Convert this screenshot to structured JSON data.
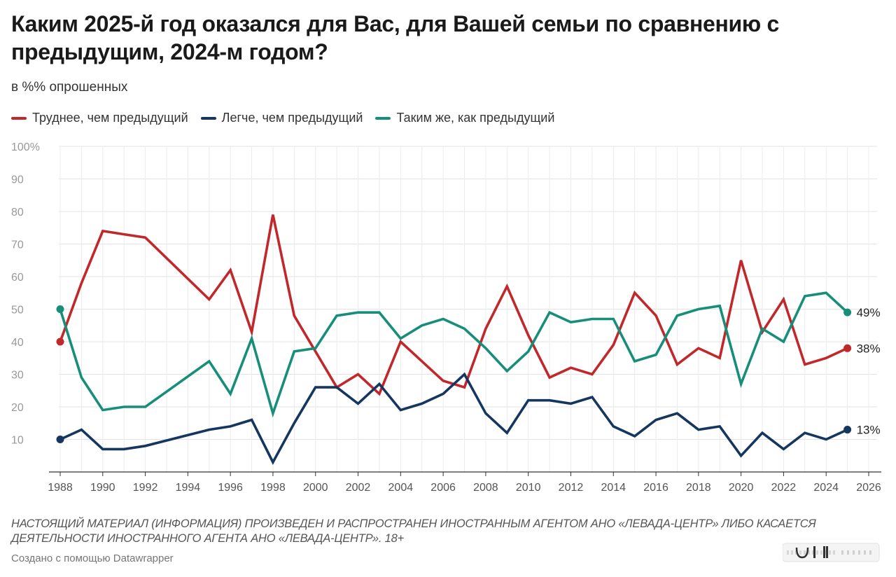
{
  "title": "Каким 2025-й год оказался для Вас, для Вашей семьи по сравнению с предыдущим, 2024-м годом?",
  "subtitle": "в %% опрошенных",
  "notice": "НАСТОЯЩИЙ МАТЕРИАЛ (ИНФОРМАЦИЯ) ПРОИЗВЕДЕН И РАСПРОСТРАНЕН ИНОСТРАННЫМ АГЕНТОМ АНО «ЛЕВАДА-ЦЕНТР» ЛИБО КАСАЕТСЯ ДЕЯТЕЛЬНОСТИ ИНОСТРАННОГО АГЕНТА АНО «ЛЕВАДА-ЦЕНТР». 18+",
  "credit": "Создано с помощью Datawrapper",
  "chart_data": {
    "type": "line",
    "title": "Каким 2025-й год оказался для Вас, для Вашей семьи по сравнению с предыдущим, 2024-м годом?",
    "xlabel": "",
    "ylabel": "в %% опрошенных",
    "xlim": [
      1988,
      2026
    ],
    "ylim": [
      0,
      100
    ],
    "grid": true,
    "legend_position": "top",
    "x_ticks": [
      "1988",
      "1990",
      "1992",
      "1994",
      "1996",
      "1998",
      "2000",
      "2002",
      "2004",
      "2006",
      "2008",
      "2010",
      "2012",
      "2014",
      "2016",
      "2018",
      "2020",
      "2022",
      "2024",
      "2026"
    ],
    "y_ticks": [
      "100%",
      "90",
      "80",
      "70",
      "60",
      "50",
      "40",
      "30",
      "20",
      "10"
    ],
    "series": [
      {
        "name": "Труднее, чем предыдущий",
        "color": "#c0282b",
        "end_label": "38%",
        "points": [
          [
            1988,
            40
          ],
          [
            1989,
            58
          ],
          [
            1990,
            74
          ],
          [
            1991,
            73
          ],
          [
            1992,
            72
          ],
          [
            1995,
            53
          ],
          [
            1996,
            62
          ],
          [
            1997,
            43
          ],
          [
            1998,
            79
          ],
          [
            1999,
            48
          ],
          [
            2000,
            37
          ],
          [
            2001,
            26
          ],
          [
            2002,
            30
          ],
          [
            2003,
            24
          ],
          [
            2004,
            40
          ],
          [
            2005,
            34
          ],
          [
            2006,
            28
          ],
          [
            2007,
            26
          ],
          [
            2008,
            44
          ],
          [
            2009,
            57
          ],
          [
            2010,
            42
          ],
          [
            2011,
            29
          ],
          [
            2012,
            32
          ],
          [
            2013,
            30
          ],
          [
            2014,
            39
          ],
          [
            2015,
            55
          ],
          [
            2016,
            48
          ],
          [
            2017,
            33
          ],
          [
            2018,
            38
          ],
          [
            2019,
            35
          ],
          [
            2020,
            65
          ],
          [
            2021,
            43
          ],
          [
            2022,
            53
          ],
          [
            2023,
            33
          ],
          [
            2024,
            35
          ],
          [
            2025,
            38
          ]
        ]
      },
      {
        "name": "Легче, чем предыдущий",
        "color": "#15365e",
        "end_label": "13%",
        "points": [
          [
            1988,
            10
          ],
          [
            1989,
            13
          ],
          [
            1990,
            7
          ],
          [
            1991,
            7
          ],
          [
            1992,
            8
          ],
          [
            1995,
            13
          ],
          [
            1996,
            14
          ],
          [
            1997,
            16
          ],
          [
            1998,
            3
          ],
          [
            1999,
            15
          ],
          [
            2000,
            26
          ],
          [
            2001,
            26
          ],
          [
            2002,
            21
          ],
          [
            2003,
            27
          ],
          [
            2004,
            19
          ],
          [
            2005,
            21
          ],
          [
            2006,
            24
          ],
          [
            2007,
            30
          ],
          [
            2008,
            18
          ],
          [
            2009,
            12
          ],
          [
            2010,
            22
          ],
          [
            2011,
            22
          ],
          [
            2012,
            21
          ],
          [
            2013,
            23
          ],
          [
            2014,
            14
          ],
          [
            2015,
            11
          ],
          [
            2016,
            16
          ],
          [
            2017,
            18
          ],
          [
            2018,
            13
          ],
          [
            2019,
            14
          ],
          [
            2020,
            5
          ],
          [
            2021,
            12
          ],
          [
            2022,
            7
          ],
          [
            2023,
            12
          ],
          [
            2024,
            10
          ],
          [
            2025,
            13
          ]
        ]
      },
      {
        "name": "Таким  же, как предыдущий",
        "color": "#178e79",
        "end_label": "49%",
        "points": [
          [
            1988,
            50
          ],
          [
            1989,
            29
          ],
          [
            1990,
            19
          ],
          [
            1991,
            20
          ],
          [
            1992,
            20
          ],
          [
            1995,
            34
          ],
          [
            1996,
            24
          ],
          [
            1997,
            41
          ],
          [
            1998,
            18
          ],
          [
            1999,
            37
          ],
          [
            2000,
            38
          ],
          [
            2001,
            48
          ],
          [
            2002,
            49
          ],
          [
            2003,
            49
          ],
          [
            2004,
            41
          ],
          [
            2005,
            45
          ],
          [
            2006,
            47
          ],
          [
            2007,
            44
          ],
          [
            2008,
            38
          ],
          [
            2009,
            31
          ],
          [
            2010,
            37
          ],
          [
            2011,
            49
          ],
          [
            2012,
            46
          ],
          [
            2013,
            47
          ],
          [
            2014,
            47
          ],
          [
            2015,
            34
          ],
          [
            2016,
            36
          ],
          [
            2017,
            48
          ],
          [
            2018,
            50
          ],
          [
            2019,
            51
          ],
          [
            2020,
            27
          ],
          [
            2021,
            44
          ],
          [
            2022,
            40
          ],
          [
            2023,
            54
          ],
          [
            2024,
            55
          ],
          [
            2025,
            49
          ]
        ]
      }
    ]
  }
}
